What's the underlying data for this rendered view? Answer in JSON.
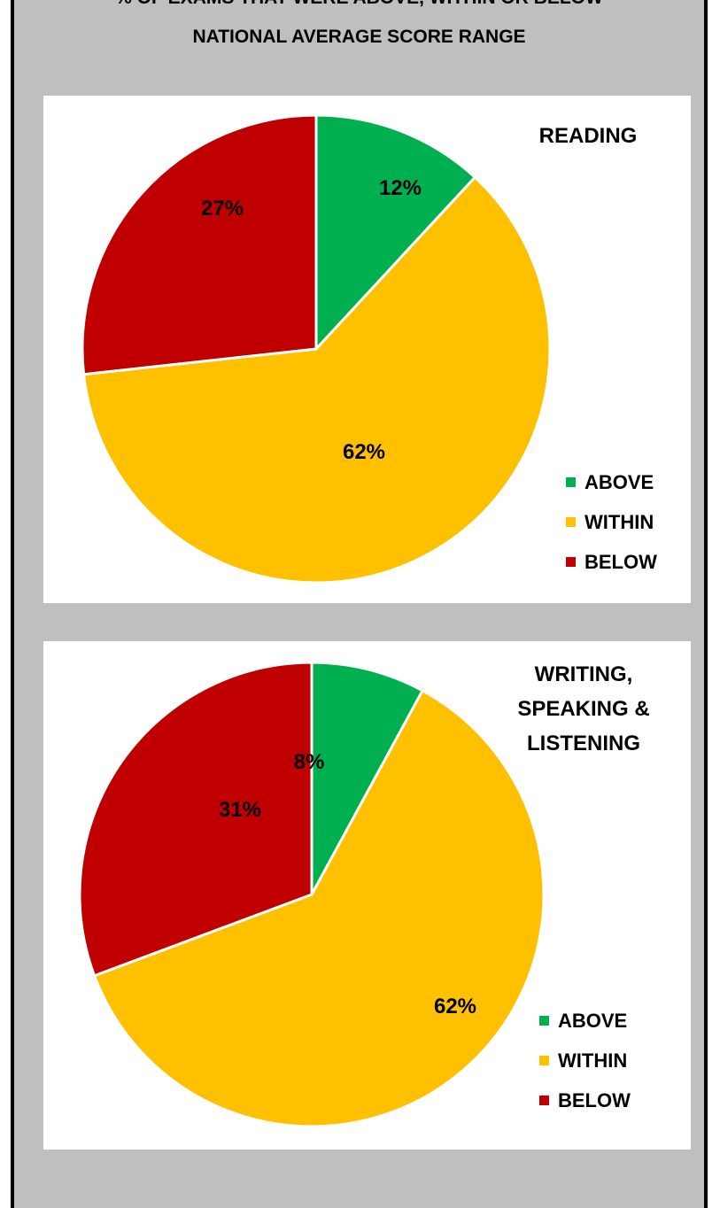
{
  "page": {
    "title_line1": "% OF EXAMS THAT WERE ABOVE, WITHIN OR BELOW",
    "title_line2": "NATIONAL AVERAGE SCORE RANGE"
  },
  "colors": {
    "above": "#00b050",
    "within": "#ffc000",
    "below": "#c00000",
    "background": "#bfbfbf"
  },
  "chart_data": [
    {
      "type": "pie",
      "title": "READING",
      "categories": [
        "ABOVE",
        "WITHIN",
        "BELOW"
      ],
      "values": [
        12,
        62,
        27
      ],
      "labels": [
        "12%",
        "62%",
        "27%"
      ],
      "colors": [
        "#00b050",
        "#ffc000",
        "#c00000"
      ],
      "legend": "right"
    },
    {
      "type": "pie",
      "title": "WRITING, SPEAKING & LISTENING",
      "title_lines": [
        "WRITING,",
        "SPEAKING &",
        "LISTENING"
      ],
      "categories": [
        "ABOVE",
        "WITHIN",
        "BELOW"
      ],
      "values": [
        8,
        62,
        31
      ],
      "labels": [
        "8%",
        "62%",
        "31%"
      ],
      "colors": [
        "#00b050",
        "#ffc000",
        "#c00000"
      ],
      "legend": "right"
    }
  ]
}
